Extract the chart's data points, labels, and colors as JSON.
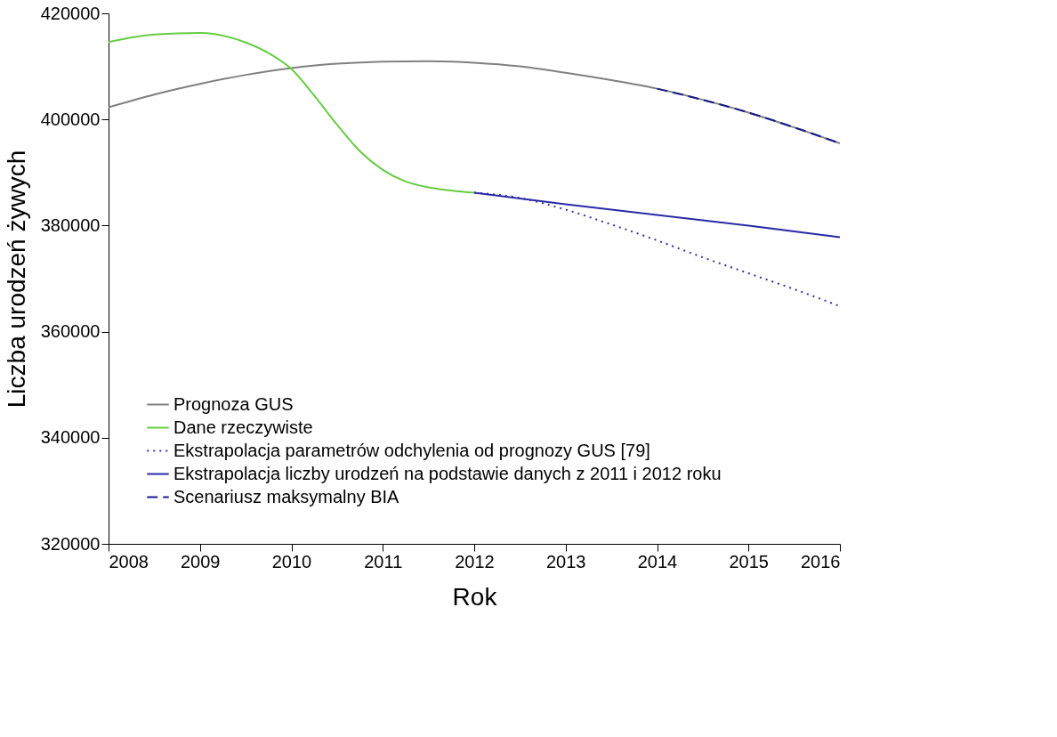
{
  "chart_data": {
    "type": "line",
    "xlabel": "Rok",
    "ylabel": "Liczba urodzeń żywych",
    "xlim": [
      2008,
      2016
    ],
    "xticks": [
      2008,
      2009,
      2010,
      2011,
      2012,
      2013,
      2014,
      2015,
      2016
    ],
    "ylim": [
      320000,
      420000
    ],
    "yticks": [
      320000,
      340000,
      360000,
      380000,
      400000,
      420000
    ],
    "grid": false,
    "legend": "bottom left",
    "series": [
      {
        "name": "Prognoza GUS",
        "color": "#808080",
        "line_style": "solid",
        "x": [
          2008,
          2008.5,
          2009,
          2009.5,
          2010,
          2010.5,
          2011,
          2011.5,
          2012,
          2012.5,
          2013,
          2013.5,
          2014,
          2014.5,
          2015,
          2015.5,
          2016
        ],
        "values": [
          402300,
          404700,
          406700,
          408400,
          409700,
          410500,
          410900,
          411000,
          410700,
          410000,
          408800,
          407400,
          405800,
          403700,
          401300,
          398500,
          395500
        ]
      },
      {
        "name": "Dane rzeczywiste",
        "color": "#66cc44",
        "line_style": "solid",
        "x": [
          2008,
          2008.5,
          2009,
          2009.5,
          2009.75,
          2010,
          2010.25,
          2010.5,
          2010.75,
          2011,
          2011.25,
          2011.5,
          2011.75,
          2012
        ],
        "values": [
          414600,
          416000,
          416300,
          414500,
          412500,
          409500,
          404500,
          399000,
          394000,
          390500,
          388300,
          387200,
          386600,
          386200
        ]
      },
      {
        "name": "Ekstrapolacja parametrów odchylenia od prognozy GUS [79]",
        "color": "#333399",
        "line_style": "dotted",
        "x": [
          2012,
          2012.5,
          2013,
          2013.5,
          2014,
          2014.5,
          2015,
          2015.5,
          2016
        ],
        "values": [
          386200,
          385200,
          383000,
          380200,
          377200,
          374000,
          371000,
          368000,
          364800
        ]
      },
      {
        "name": "Ekstrapolacja liczby urodzeń na podstawie danych z 2011 i 2012 roku",
        "color": "#2a2aa8",
        "line_style": "solid",
        "x": [
          2012,
          2013,
          2014,
          2015,
          2016
        ],
        "values": [
          386200,
          384000,
          382000,
          380000,
          377800
        ]
      },
      {
        "name": "Scenariusz maksymalny BIA",
        "color": "#1a1a8c",
        "line_style": "dashed",
        "x": [
          2014,
          2014.5,
          2015,
          2015.5,
          2016
        ],
        "values": [
          405800,
          403700,
          401300,
          398500,
          395500
        ]
      }
    ]
  }
}
